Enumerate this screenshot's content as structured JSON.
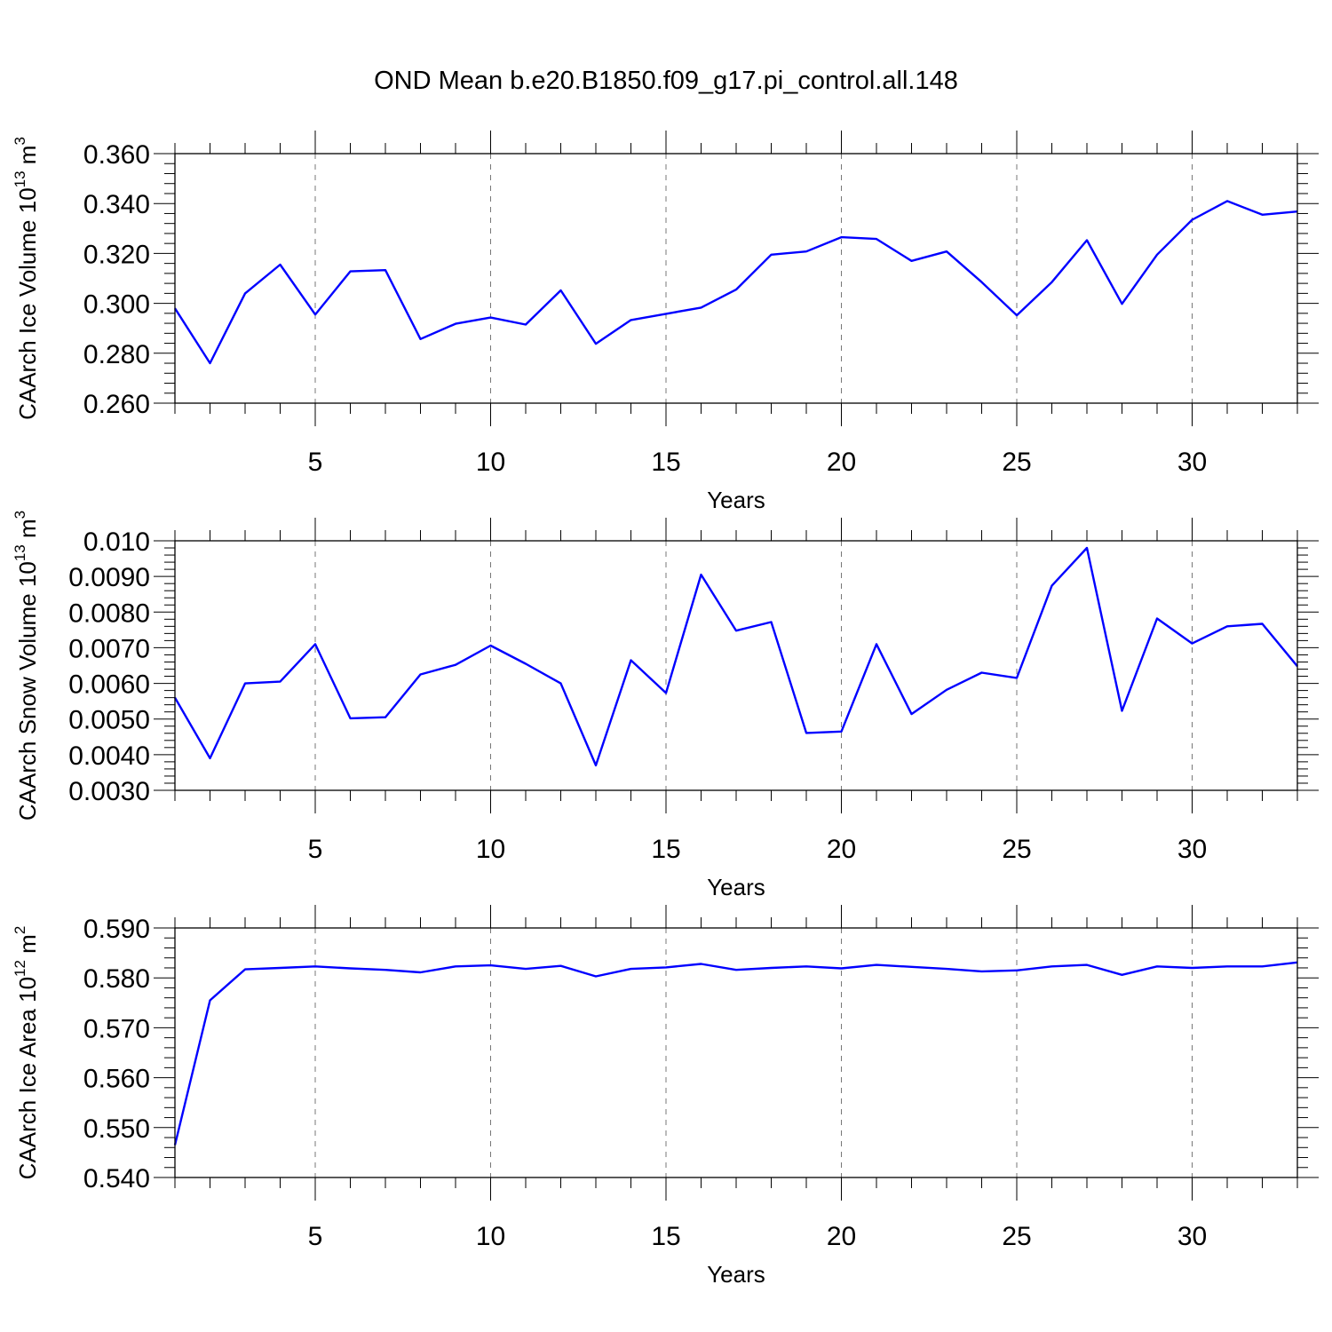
{
  "title": "OND Mean b.e20.B1850.f09_g17.pi_control.all.148",
  "chart_data": [
    {
      "type": "line",
      "title": "OND Mean b.e20.B1850.f09_g17.pi_control.all.148",
      "xlabel": "Years",
      "ylabel": "CAArch Ice Volume",
      "yunit_base": "10",
      "yunit_exp": "13",
      "yunit_sym": "m",
      "yunit_pow": "3",
      "xlim": [
        1,
        33
      ],
      "ylim": [
        0.26,
        0.36
      ],
      "xticks": [
        5,
        10,
        15,
        20,
        25,
        30
      ],
      "yticks": [
        "0.260",
        "0.280",
        "0.300",
        "0.320",
        "0.340",
        "0.360"
      ],
      "grid": "vertical dashed at labeled x ticks",
      "color": "#0000ff",
      "x": [
        1,
        2,
        3,
        4,
        5,
        6,
        7,
        8,
        9,
        10,
        11,
        12,
        13,
        14,
        15,
        16,
        17,
        18,
        19,
        20,
        21,
        22,
        23,
        24,
        25,
        26,
        27,
        28,
        29,
        30,
        31,
        32,
        33
      ],
      "values": [
        0.298,
        0.276,
        0.304,
        0.3155,
        0.2955,
        0.3128,
        0.3133,
        0.2857,
        0.2918,
        0.2943,
        0.2915,
        0.3052,
        0.2838,
        0.2933,
        0.2958,
        0.2983,
        0.3055,
        0.3195,
        0.3208,
        0.3265,
        0.3258,
        0.317,
        0.3208,
        0.3085,
        0.2952,
        0.3085,
        0.3253,
        0.2998,
        0.3195,
        0.3335,
        0.341,
        0.3355,
        0.3368
      ]
    },
    {
      "type": "line",
      "xlabel": "Years",
      "ylabel": "CAArch Snow Volume",
      "yunit_base": "10",
      "yunit_exp": "13",
      "yunit_sym": "m",
      "yunit_pow": "3",
      "xlim": [
        1,
        33
      ],
      "ylim": [
        0.003,
        0.01
      ],
      "xticks": [
        5,
        10,
        15,
        20,
        25,
        30
      ],
      "yticks": [
        "0.0030",
        "0.0040",
        "0.0050",
        "0.0060",
        "0.0070",
        "0.0080",
        "0.0090",
        "0.010"
      ],
      "grid": "vertical dashed at labeled x ticks",
      "color": "#0000ff",
      "x": [
        1,
        2,
        3,
        4,
        5,
        6,
        7,
        8,
        9,
        10,
        11,
        12,
        13,
        14,
        15,
        16,
        17,
        18,
        19,
        20,
        21,
        22,
        23,
        24,
        25,
        26,
        27,
        28,
        29,
        30,
        31,
        32,
        33
      ],
      "values": [
        0.0056,
        0.0039,
        0.006,
        0.00605,
        0.0071,
        0.00502,
        0.00505,
        0.00625,
        0.00652,
        0.00706,
        0.00655,
        0.006,
        0.0037,
        0.00665,
        0.00573,
        0.00905,
        0.00748,
        0.00772,
        0.00461,
        0.00465,
        0.0071,
        0.00514,
        0.00582,
        0.0063,
        0.00615,
        0.00874,
        0.0098,
        0.00523,
        0.00782,
        0.00712,
        0.0076,
        0.00767,
        0.00648
      ]
    },
    {
      "type": "line",
      "xlabel": "Years",
      "ylabel": "CAArch Ice Area",
      "yunit_base": "10",
      "yunit_exp": "12",
      "yunit_sym": "m",
      "yunit_pow": "2",
      "xlim": [
        1,
        33
      ],
      "ylim": [
        0.54,
        0.59
      ],
      "xticks": [
        5,
        10,
        15,
        20,
        25,
        30
      ],
      "yticks": [
        "0.540",
        "0.550",
        "0.560",
        "0.570",
        "0.580",
        "0.590"
      ],
      "grid": "vertical dashed at labeled x ticks",
      "color": "#0000ff",
      "x": [
        1,
        2,
        3,
        4,
        5,
        6,
        7,
        8,
        9,
        10,
        11,
        12,
        13,
        14,
        15,
        16,
        17,
        18,
        19,
        20,
        21,
        22,
        23,
        24,
        25,
        26,
        27,
        28,
        29,
        30,
        31,
        32,
        33
      ],
      "values": [
        0.5465,
        0.5755,
        0.5817,
        0.582,
        0.5823,
        0.5819,
        0.5816,
        0.5811,
        0.5823,
        0.5825,
        0.5818,
        0.5824,
        0.5803,
        0.5818,
        0.5821,
        0.5828,
        0.5816,
        0.582,
        0.5823,
        0.5819,
        0.5826,
        0.5822,
        0.5818,
        0.5813,
        0.5815,
        0.5823,
        0.5826,
        0.5806,
        0.5823,
        0.582,
        0.5823,
        0.5823,
        0.5831
      ]
    }
  ]
}
